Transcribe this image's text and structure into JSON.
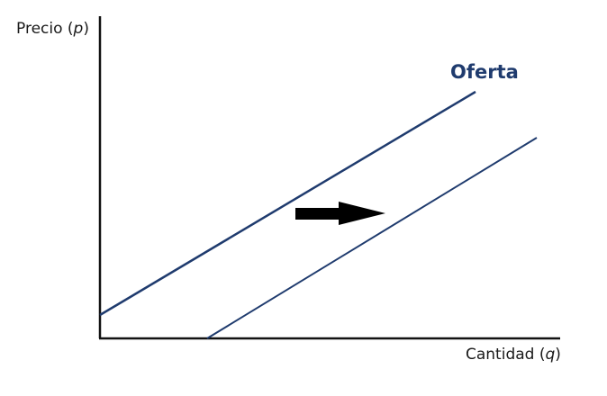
{
  "diagram": {
    "y_axis": {
      "label_text": "Precio (",
      "label_var": "p",
      "label_close": ")"
    },
    "x_axis": {
      "label_text": "Cantidad (",
      "label_var": "q",
      "label_close": ")"
    },
    "supply_curve": {
      "label": "Oferta"
    },
    "colors": {
      "curve": "#1f3b6e",
      "axis": "#111111",
      "arrow": "#000000"
    },
    "shift_direction": "right",
    "icons": [
      "right-arrow-icon"
    ]
  }
}
